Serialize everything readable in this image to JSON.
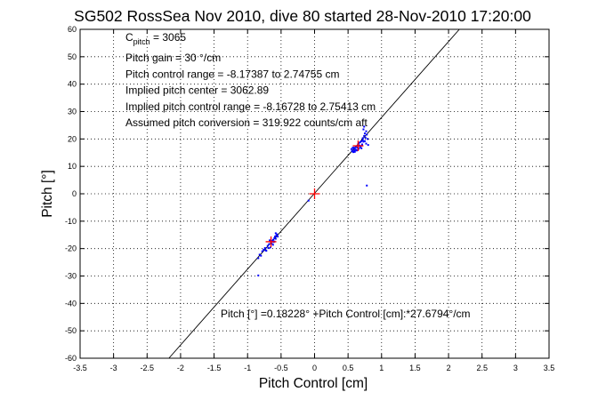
{
  "chart_data": {
    "type": "scatter",
    "title": "SG502 RossSea Nov 2010, dive 80 started 28-Nov-2010 17:20:00",
    "xlabel": "Pitch Control [cm]",
    "ylabel": "Pitch [°]",
    "xlim": [
      -3.5,
      3.5
    ],
    "ylim": [
      -60,
      60
    ],
    "xticks": [
      -3.5,
      -3,
      -2.5,
      -2,
      -1.5,
      -1,
      -0.5,
      0,
      0.5,
      1,
      1.5,
      2,
      2.5,
      3,
      3.5
    ],
    "yticks": [
      -60,
      -50,
      -40,
      -30,
      -20,
      -10,
      0,
      10,
      20,
      30,
      40,
      50,
      60
    ],
    "grid": true,
    "colors": {
      "data_points": "#0000ff",
      "centroids": "#ff0000",
      "fit_line": "#000000"
    },
    "annotations": {
      "c_pitch_base": "C",
      "c_pitch_sub": "pitch",
      "c_pitch_rest": " = 3065",
      "lines": [
        "Pitch gain = 30 °/cm",
        "Pitch control range = -8.17387 to 2.74755 cm",
        "Implied pitch center = 3062.89",
        "Implied pitch control range = -8.16728 to 2.75413 cm",
        "Assumed pitch conversion = 319.922 counts/cm aft"
      ],
      "fit_label": "Pitch [°] =0.18228° +Pitch Control [cm]:*27.6794°/cm"
    },
    "fit_line": {
      "intercept": 0.18228,
      "slope": 27.6794
    },
    "series": [
      {
        "points": [
          [
            0.55,
            16.3
          ],
          [
            0.56,
            15.6
          ],
          [
            0.57,
            16.8
          ],
          [
            0.58,
            15.2
          ],
          [
            0.59,
            16.0
          ],
          [
            0.6,
            15.5
          ],
          [
            0.61,
            16.4
          ],
          [
            0.62,
            17.2
          ],
          [
            0.63,
            15.8
          ],
          [
            0.64,
            16.9
          ],
          [
            0.65,
            18.1
          ],
          [
            0.66,
            16.5
          ],
          [
            0.67,
            17.6
          ],
          [
            0.68,
            18.8
          ],
          [
            0.69,
            17.4
          ],
          [
            0.7,
            19.2
          ],
          [
            0.71,
            18.0
          ],
          [
            0.72,
            20.3
          ],
          [
            0.73,
            19.0
          ],
          [
            0.74,
            21.1
          ],
          [
            0.75,
            22.0
          ],
          [
            0.76,
            20.5
          ],
          [
            0.77,
            22.8
          ],
          [
            0.78,
            21.6
          ],
          [
            0.79,
            20.0
          ],
          [
            0.58,
            16.6
          ],
          [
            0.6,
            15.3
          ],
          [
            0.62,
            15.9
          ],
          [
            0.57,
            15.4
          ],
          [
            0.59,
            16.8
          ],
          [
            0.68,
            17.0
          ],
          [
            0.72,
            19.6
          ],
          [
            0.73,
            23.5
          ],
          [
            0.74,
            24.5
          ],
          [
            0.75,
            19.2
          ],
          [
            0.77,
            18.3
          ],
          [
            0.8,
            17.8
          ],
          [
            0.66,
            18.4
          ],
          [
            0.65,
            16.2
          ],
          [
            0.7,
            16.6
          ],
          [
            0.78,
            3.0
          ],
          [
            -0.09,
            -2.5
          ],
          [
            -0.84,
            -23.5
          ],
          [
            -0.82,
            -22.2
          ],
          [
            -0.8,
            -22.6
          ],
          [
            -0.78,
            -21.0
          ],
          [
            -0.76,
            -20.4
          ],
          [
            -0.74,
            -19.8
          ],
          [
            -0.72,
            -20.8
          ],
          [
            -0.7,
            -19.0
          ],
          [
            -0.68,
            -18.4
          ],
          [
            -0.66,
            -19.6
          ],
          [
            -0.65,
            -17.8
          ],
          [
            -0.64,
            -18.2
          ],
          [
            -0.63,
            -17.2
          ],
          [
            -0.62,
            -16.8
          ],
          [
            -0.61,
            -17.6
          ],
          [
            -0.6,
            -16.2
          ],
          [
            -0.59,
            -15.6
          ],
          [
            -0.58,
            -16.4
          ],
          [
            -0.57,
            -15.2
          ],
          [
            -0.56,
            -14.8
          ],
          [
            -0.55,
            -15.6
          ],
          [
            -0.6,
            -17.4
          ],
          [
            -0.62,
            -18.6
          ],
          [
            -0.67,
            -17.0
          ],
          [
            -0.69,
            -19.8
          ],
          [
            -0.73,
            -20.6
          ],
          [
            -0.58,
            -14.4
          ],
          [
            -0.84,
            -29.8
          ]
        ]
      },
      {
        "points": [
          [
            0.65,
            17.5
          ],
          [
            0.0,
            0.0
          ],
          [
            -0.65,
            -17.5
          ]
        ]
      }
    ]
  }
}
